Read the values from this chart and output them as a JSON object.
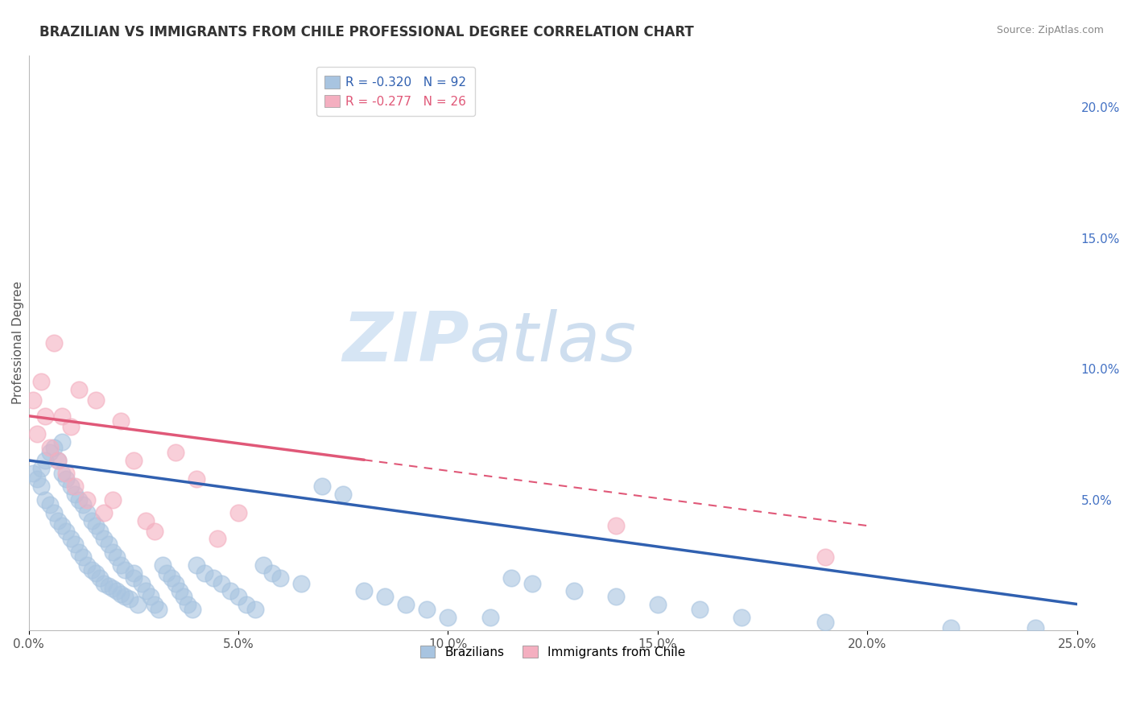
{
  "title": "BRAZILIAN VS IMMIGRANTS FROM CHILE PROFESSIONAL DEGREE CORRELATION CHART",
  "source": "Source: ZipAtlas.com",
  "ylabel": "Professional Degree",
  "xlim": [
    0.0,
    0.25
  ],
  "ylim": [
    0.0,
    0.22
  ],
  "x_ticks": [
    0.0,
    0.05,
    0.1,
    0.15,
    0.2,
    0.25
  ],
  "x_tick_labels": [
    "0.0%",
    "5.0%",
    "10.0%",
    "15.0%",
    "20.0%",
    "25.0%"
  ],
  "y_ticks_right": [
    0.05,
    0.1,
    0.15,
    0.2
  ],
  "y_tick_labels_right": [
    "5.0%",
    "10.0%",
    "15.0%",
    "20.0%"
  ],
  "legend_entry_brazil": "R = -0.320   N = 92",
  "legend_entry_chile": "R = -0.277   N = 26",
  "legend_labels_bottom": [
    "Brazilians",
    "Immigrants from Chile"
  ],
  "brazil_color": "#a8c4e0",
  "chile_color": "#f4afc0",
  "brazil_line_color": "#3060b0",
  "chile_line_color": "#e05878",
  "watermark_zip": "ZIP",
  "watermark_atlas": "atlas",
  "brazil_trend_x": [
    0.0,
    0.25
  ],
  "brazil_trend_y": [
    0.065,
    0.01
  ],
  "chile_trend_x": [
    0.0,
    0.2
  ],
  "chile_trend_y": [
    0.082,
    0.04
  ],
  "brazil_scatter_x": [
    0.001,
    0.002,
    0.003,
    0.003,
    0.004,
    0.004,
    0.005,
    0.005,
    0.006,
    0.006,
    0.007,
    0.007,
    0.008,
    0.008,
    0.008,
    0.009,
    0.009,
    0.01,
    0.01,
    0.011,
    0.011,
    0.012,
    0.012,
    0.013,
    0.013,
    0.014,
    0.014,
    0.015,
    0.015,
    0.016,
    0.016,
    0.017,
    0.017,
    0.018,
    0.018,
    0.019,
    0.019,
    0.02,
    0.02,
    0.021,
    0.021,
    0.022,
    0.022,
    0.023,
    0.023,
    0.024,
    0.025,
    0.025,
    0.026,
    0.027,
    0.028,
    0.029,
    0.03,
    0.031,
    0.032,
    0.033,
    0.034,
    0.035,
    0.036,
    0.037,
    0.038,
    0.039,
    0.04,
    0.042,
    0.044,
    0.046,
    0.048,
    0.05,
    0.052,
    0.054,
    0.056,
    0.058,
    0.06,
    0.065,
    0.07,
    0.075,
    0.08,
    0.085,
    0.09,
    0.095,
    0.1,
    0.11,
    0.115,
    0.12,
    0.13,
    0.14,
    0.15,
    0.16,
    0.17,
    0.19,
    0.22,
    0.24
  ],
  "brazil_scatter_y": [
    0.06,
    0.058,
    0.055,
    0.062,
    0.05,
    0.065,
    0.048,
    0.068,
    0.045,
    0.07,
    0.042,
    0.065,
    0.04,
    0.06,
    0.072,
    0.038,
    0.058,
    0.035,
    0.055,
    0.033,
    0.052,
    0.03,
    0.05,
    0.028,
    0.048,
    0.025,
    0.045,
    0.023,
    0.042,
    0.022,
    0.04,
    0.02,
    0.038,
    0.018,
    0.035,
    0.017,
    0.033,
    0.016,
    0.03,
    0.015,
    0.028,
    0.014,
    0.025,
    0.013,
    0.023,
    0.012,
    0.022,
    0.02,
    0.01,
    0.018,
    0.015,
    0.013,
    0.01,
    0.008,
    0.025,
    0.022,
    0.02,
    0.018,
    0.015,
    0.013,
    0.01,
    0.008,
    0.025,
    0.022,
    0.02,
    0.018,
    0.015,
    0.013,
    0.01,
    0.008,
    0.025,
    0.022,
    0.02,
    0.018,
    0.055,
    0.052,
    0.015,
    0.013,
    0.01,
    0.008,
    0.005,
    0.005,
    0.02,
    0.018,
    0.015,
    0.013,
    0.01,
    0.008,
    0.005,
    0.003,
    0.001,
    0.001
  ],
  "chile_scatter_x": [
    0.001,
    0.002,
    0.003,
    0.004,
    0.005,
    0.006,
    0.007,
    0.008,
    0.009,
    0.01,
    0.011,
    0.012,
    0.014,
    0.016,
    0.018,
    0.02,
    0.022,
    0.025,
    0.028,
    0.03,
    0.035,
    0.04,
    0.045,
    0.05,
    0.14,
    0.19
  ],
  "chile_scatter_y": [
    0.088,
    0.075,
    0.095,
    0.082,
    0.07,
    0.11,
    0.065,
    0.082,
    0.06,
    0.078,
    0.055,
    0.092,
    0.05,
    0.088,
    0.045,
    0.05,
    0.08,
    0.065,
    0.042,
    0.038,
    0.068,
    0.058,
    0.035,
    0.045,
    0.04,
    0.028
  ]
}
